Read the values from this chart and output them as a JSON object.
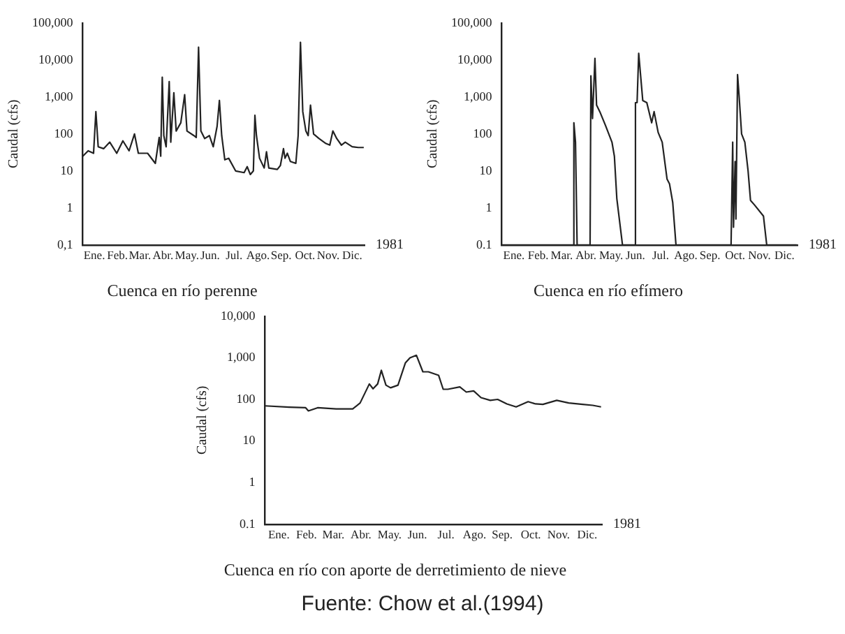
{
  "chart_data": [
    {
      "type": "line",
      "title": "Cuenca en río perenne",
      "xlabel": "1981",
      "ylabel": "Caudal (cfs)",
      "log": "y",
      "marker": "none",
      "line_style": "solid",
      "legend": false,
      "grid": false,
      "xlim": [
        "1981-01-01",
        "1982-01-01"
      ],
      "xticks": [
        {
          "value": "1981-01-16",
          "label": "Ene."
        },
        {
          "value": "1981-02-15",
          "label": "Feb."
        },
        {
          "value": "1981-03-16",
          "label": "Mar."
        },
        {
          "value": "1981-04-15",
          "label": "Abr."
        },
        {
          "value": "1981-05-16",
          "label": "May."
        },
        {
          "value": "1981-06-15",
          "label": "Jun."
        },
        {
          "value": "1981-07-16",
          "label": "Jul."
        },
        {
          "value": "1981-08-16",
          "label": "Ago."
        },
        {
          "value": "1981-09-15",
          "label": "Sep."
        },
        {
          "value": "1981-10-16",
          "label": "Oct."
        },
        {
          "value": "1981-11-15",
          "label": "Nov."
        },
        {
          "value": "1981-12-16",
          "label": "Dic."
        }
      ],
      "ylim": [
        0.1,
        100000
      ],
      "yticks": [
        {
          "value": 0.1,
          "label": "0,1"
        },
        1,
        10,
        100,
        {
          "value": 1000,
          "label": "1,000"
        },
        {
          "value": 10000,
          "label": "10,000"
        },
        {
          "value": 100000,
          "label": "100,000"
        }
      ],
      "series": [
        {
          "color": "#222222",
          "x": [
            "1981-01-01",
            "1981-01-08",
            "1981-01-15",
            "1981-01-18",
            "1981-01-21",
            "1981-01-28",
            "1981-02-05",
            "1981-02-14",
            "1981-02-22",
            "1981-03-02",
            "1981-03-09",
            "1981-03-14",
            "1981-03-26",
            "1981-04-05",
            "1981-04-10",
            "1981-04-12",
            "1981-04-14",
            "1981-04-16",
            "1981-04-19",
            "1981-04-23",
            "1981-04-25",
            "1981-04-29",
            "1981-05-02",
            "1981-05-08",
            "1981-05-13",
            "1981-05-16",
            "1981-05-25",
            "1981-05-28",
            "1981-05-31",
            "1981-06-03",
            "1981-06-08",
            "1981-06-14",
            "1981-06-19",
            "1981-06-24",
            "1981-06-27",
            "1981-06-30",
            "1981-07-04",
            "1981-07-09",
            "1981-07-18",
            "1981-07-29",
            "1981-08-02",
            "1981-08-06",
            "1981-08-10",
            "1981-08-12",
            "1981-08-14",
            "1981-08-18",
            "1981-08-24",
            "1981-08-27",
            "1981-08-30",
            "1981-09-10",
            "1981-09-14",
            "1981-09-18",
            "1981-09-20",
            "1981-09-23",
            "1981-09-27",
            "1981-10-04",
            "1981-10-07",
            "1981-10-10",
            "1981-10-13",
            "1981-10-17",
            "1981-10-20",
            "1981-10-23",
            "1981-10-27",
            "1981-11-03",
            "1981-11-12",
            "1981-11-17",
            "1981-11-21",
            "1981-11-26",
            "1981-12-02",
            "1981-12-07",
            "1981-12-16",
            "1981-12-24",
            "1981-12-31"
          ],
          "values": [
            25,
            35,
            30,
            400,
            45,
            40,
            60,
            30,
            65,
            35,
            100,
            30,
            30,
            16,
            80,
            25,
            3400,
            90,
            45,
            2600,
            60,
            1300,
            120,
            200,
            1150,
            120,
            90,
            80,
            22000,
            120,
            75,
            90,
            45,
            160,
            800,
            90,
            20,
            22,
            10,
            9,
            13,
            8,
            10,
            320,
            90,
            22,
            12,
            33,
            12,
            11,
            14,
            40,
            22,
            30,
            18,
            16,
            90,
            30000,
            400,
            120,
            90,
            600,
            100,
            75,
            55,
            50,
            120,
            75,
            50,
            60,
            45,
            43,
            43
          ]
        }
      ]
    },
    {
      "type": "line",
      "title": "Cuenca en río efímero",
      "xlabel": "1981",
      "ylabel": "Caudal (cfs)",
      "log": "y",
      "marker": "none",
      "line_style": "solid",
      "legend": false,
      "grid": false,
      "xlim": [
        "1981-01-01",
        "1982-01-01"
      ],
      "xticks": [
        {
          "value": "1981-01-16",
          "label": "Ene."
        },
        {
          "value": "1981-02-15",
          "label": "Feb."
        },
        {
          "value": "1981-03-16",
          "label": "Mar."
        },
        {
          "value": "1981-04-15",
          "label": "Abr."
        },
        {
          "value": "1981-05-16",
          "label": "May."
        },
        {
          "value": "1981-06-15",
          "label": "Jun."
        },
        {
          "value": "1981-07-16",
          "label": "Jul."
        },
        {
          "value": "1981-08-16",
          "label": "Ago."
        },
        {
          "value": "1981-09-15",
          "label": "Sep."
        },
        {
          "value": "1981-10-16",
          "label": "Oct."
        },
        {
          "value": "1981-11-15",
          "label": "Nov."
        },
        {
          "value": "1981-12-16",
          "label": "Dic."
        }
      ],
      "ylim": [
        0.1,
        100000
      ],
      "yticks": [
        0.1,
        1,
        10,
        100,
        {
          "value": 1000,
          "label": "1,000"
        },
        {
          "value": 10000,
          "label": "10,000"
        },
        {
          "value": 100000,
          "label": "100,000"
        }
      ],
      "series": [
        {
          "color": "#222222",
          "x": [
            "1981-01-01",
            "1981-03-30",
            "1981-03-31",
            "1981-04-02",
            "1981-04-04",
            "1981-04-20",
            "1981-04-21",
            "1981-04-23",
            "1981-04-26",
            "1981-04-28",
            "1981-05-02",
            "1981-05-09",
            "1981-05-17",
            "1981-05-20",
            "1981-05-23",
            "1981-05-30",
            "1981-06-14",
            "1981-06-15",
            "1981-06-17",
            "1981-06-19",
            "1981-06-24",
            "1981-06-29",
            "1981-07-05",
            "1981-07-08",
            "1981-07-13",
            "1981-07-18",
            "1981-07-24",
            "1981-07-27",
            "1981-07-31",
            "1981-08-04",
            "1981-10-11",
            "1981-10-13",
            "1981-10-14",
            "1981-10-16",
            "1981-10-17",
            "1981-10-19",
            "1981-10-21",
            "1981-10-24",
            "1981-10-28",
            "1981-11-01",
            "1981-11-04",
            "1981-11-09",
            "1981-11-20",
            "1981-11-24",
            "1981-12-31"
          ],
          "values": [
            0.1,
            0.1,
            200,
            60,
            0.1,
            0.1,
            3700,
            260,
            11000,
            600,
            400,
            170,
            60,
            25,
            1.8,
            0.1,
            0.1,
            700,
            700,
            15000,
            800,
            700,
            200,
            400,
            110,
            60,
            6,
            4.5,
            1.4,
            0.1,
            0.1,
            60,
            0.3,
            18,
            0.5,
            4000,
            1000,
            100,
            60,
            10,
            1.6,
            1.2,
            0.6,
            0.1,
            0.1
          ]
        }
      ]
    },
    {
      "type": "line",
      "title": "Cuenca en río con aporte de derretimiento de nieve",
      "xlabel": "1981",
      "ylabel": "Caudal (cfs)",
      "log": "y",
      "marker": "none",
      "line_style": "solid",
      "legend": false,
      "grid": false,
      "annotations": [
        "Fuente: Chow et al.(1994)"
      ],
      "xlim": [
        "1981-01-01",
        "1982-01-01"
      ],
      "xticks": [
        {
          "value": "1981-01-16",
          "label": "Ene."
        },
        {
          "value": "1981-02-15",
          "label": "Feb."
        },
        {
          "value": "1981-03-16",
          "label": "Mar."
        },
        {
          "value": "1981-04-15",
          "label": "Abr."
        },
        {
          "value": "1981-05-16",
          "label": "May."
        },
        {
          "value": "1981-06-15",
          "label": "Jun."
        },
        {
          "value": "1981-07-16",
          "label": "Jul."
        },
        {
          "value": "1981-08-16",
          "label": "Ago."
        },
        {
          "value": "1981-09-15",
          "label": "Sep."
        },
        {
          "value": "1981-10-16",
          "label": "Oct."
        },
        {
          "value": "1981-11-15",
          "label": "Nov."
        },
        {
          "value": "1981-12-16",
          "label": "Dic."
        }
      ],
      "ylim": [
        0.1,
        10000
      ],
      "yticks": [
        0.1,
        1,
        10,
        100,
        {
          "value": 1000,
          "label": "1,000"
        },
        {
          "value": 10000,
          "label": "10,000"
        }
      ],
      "series": [
        {
          "color": "#222222",
          "x": [
            "1981-01-01",
            "1981-01-27",
            "1981-02-14",
            "1981-02-17",
            "1981-02-27",
            "1981-03-19",
            "1981-04-06",
            "1981-04-14",
            "1981-04-22",
            "1981-04-24",
            "1981-04-28",
            "1981-05-03",
            "1981-05-07",
            "1981-05-12",
            "1981-05-17",
            "1981-05-25",
            "1981-06-02",
            "1981-06-07",
            "1981-06-14",
            "1981-06-21",
            "1981-06-27",
            "1981-07-08",
            "1981-07-13",
            "1981-07-18",
            "1981-07-31",
            "1981-08-07",
            "1981-08-15",
            "1981-08-23",
            "1981-09-02",
            "1981-09-10",
            "1981-09-20",
            "1981-09-30",
            "1981-10-13",
            "1981-10-21",
            "1981-10-29",
            "1981-11-13",
            "1981-11-26",
            "1981-12-11",
            "1981-12-22",
            "1981-12-31"
          ],
          "values": [
            70,
            65,
            63,
            53,
            63,
            59,
            59,
            82,
            190,
            235,
            180,
            235,
            500,
            220,
            190,
            220,
            750,
            1000,
            1150,
            460,
            460,
            380,
            175,
            175,
            200,
            150,
            160,
            110,
            95,
            100,
            78,
            66,
            88,
            78,
            76,
            95,
            82,
            76,
            72,
            66
          ]
        }
      ]
    }
  ]
}
